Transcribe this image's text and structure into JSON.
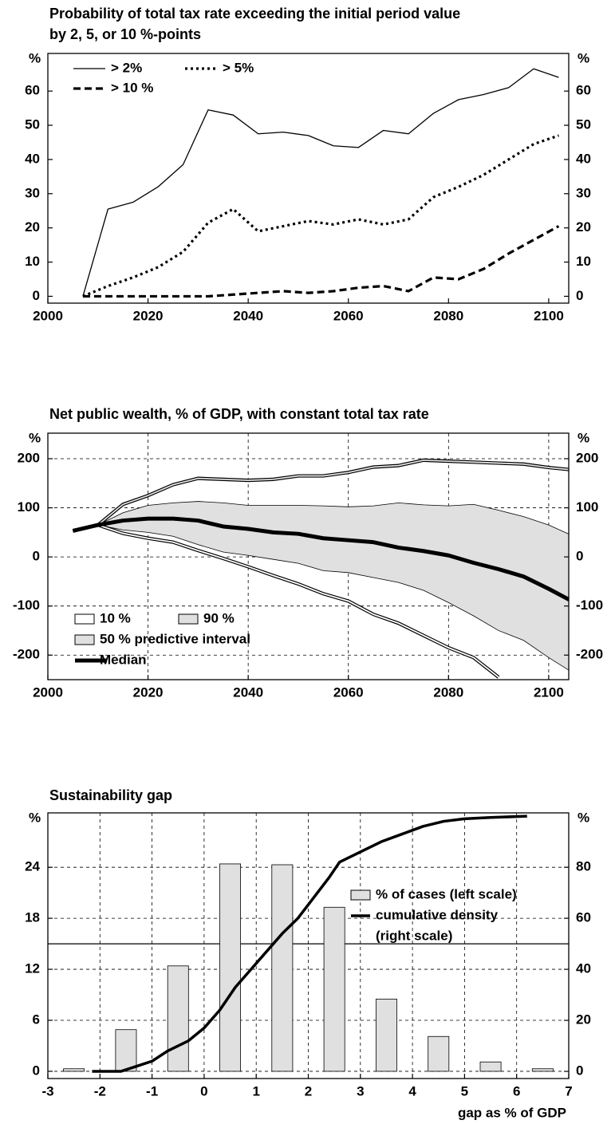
{
  "chart_data": [
    {
      "type": "line",
      "title": [
        "Probability of total tax rate exceeding the initial period value",
        "by 2, 5, or 10 %-points"
      ],
      "y_unit": "%",
      "y2_unit": "%",
      "xlim": [
        2000,
        2104
      ],
      "xticks": [
        2000,
        2020,
        2040,
        2060,
        2080,
        2100
      ],
      "ylim": [
        -2,
        71
      ],
      "yticks": [
        0,
        10,
        20,
        30,
        40,
        50,
        60
      ],
      "y2lim": [
        -2,
        71
      ],
      "y2ticks": [
        0,
        10,
        20,
        30,
        40,
        50,
        60
      ],
      "grid": false,
      "legend": "top-left",
      "x": [
        2007,
        2012,
        2017,
        2022,
        2027,
        2032,
        2037,
        2042,
        2047,
        2052,
        2057,
        2062,
        2067,
        2072,
        2077,
        2082,
        2087,
        2092,
        2097,
        2102
      ],
      "series": [
        {
          "name": "> 2%",
          "color": "#000000",
          "style": "solid",
          "values": [
            0,
            25.5,
            27.5,
            32,
            38.5,
            54.5,
            53,
            47.5,
            48,
            47,
            44,
            43.5,
            48.5,
            47.5,
            53.5,
            57.5,
            59,
            61,
            66.5,
            64
          ]
        },
        {
          "name": "> 5%",
          "color": "#000000",
          "style": "dotted",
          "values": [
            0,
            3,
            5.5,
            8.5,
            13,
            21.5,
            25.5,
            19,
            20.5,
            22,
            21,
            22.5,
            21,
            22.5,
            29,
            32,
            35.5,
            40,
            44.5,
            47
          ]
        },
        {
          "name": "> 10 %",
          "color": "#000000",
          "style": "dashed",
          "values": [
            0,
            0,
            0,
            0,
            0,
            0,
            0.5,
            1,
            1.5,
            1,
            1.5,
            2.5,
            3,
            1.5,
            5.5,
            5,
            8,
            12.5,
            16.5,
            20.5
          ]
        }
      ]
    },
    {
      "type": "line",
      "title": [
        "Net public wealth, % of GDP, with constant total tax rate"
      ],
      "y_unit": "%",
      "y2_unit": "%",
      "xlim": [
        2000,
        2104
      ],
      "xticks": [
        2000,
        2020,
        2040,
        2060,
        2080,
        2100
      ],
      "ylim": [
        -250,
        252
      ],
      "yticks": [
        -200,
        -100,
        0,
        100,
        200
      ],
      "y2lim": [
        -250,
        252
      ],
      "y2ticks": [
        -200,
        -100,
        0,
        100,
        200
      ],
      "grid": true,
      "legend": "bottom-left",
      "x": [
        2005,
        2010,
        2015,
        2020,
        2025,
        2030,
        2035,
        2040,
        2045,
        2050,
        2055,
        2060,
        2065,
        2070,
        2075,
        2080,
        2085,
        2090,
        2095,
        2100,
        2105
      ],
      "series": [
        {
          "name": "10 %",
          "color": "#ffffff",
          "style": "double",
          "values": [
            53,
            65,
            48,
            38,
            30,
            13,
            -3,
            -20,
            -38,
            -55,
            -75,
            -90,
            -117,
            -135,
            -160,
            -185,
            -205,
            -245,
            null,
            null,
            null
          ]
        },
        {
          "name": "90 %",
          "color": "#e0e0e0",
          "style": "double",
          "values": [
            53,
            65,
            107,
            125,
            147,
            160,
            158,
            156,
            158,
            165,
            165,
            172,
            183,
            186,
            197,
            195,
            193,
            191,
            189,
            182,
            177
          ]
        },
        {
          "name": "50 % predictive interval",
          "color": "#e0e0e0",
          "style": "band",
          "upper": [
            53,
            65,
            90,
            105,
            110,
            113,
            110,
            105,
            105,
            105,
            104,
            102,
            104,
            110,
            106,
            104,
            107,
            95,
            82,
            65,
            42
          ],
          "lower": [
            53,
            65,
            55,
            50,
            42,
            25,
            10,
            3,
            -5,
            -13,
            -28,
            -32,
            -42,
            -52,
            -68,
            -93,
            -120,
            -150,
            -170,
            -205,
            -237
          ]
        },
        {
          "name": "Median",
          "color": "#000000",
          "style": "thick",
          "values": [
            53,
            65,
            74,
            78,
            78,
            74,
            62,
            57,
            50,
            47,
            38,
            34,
            30,
            19,
            12,
            3,
            -12,
            -25,
            -40,
            -65,
            -92
          ]
        }
      ]
    },
    {
      "type": "histogram",
      "title": [
        "Sustainability gap"
      ],
      "y_unit": "%",
      "y2_unit": "%",
      "xlabel": "gap as % of GDP",
      "xlim": [
        -3,
        7
      ],
      "xticks": [
        -3,
        -2,
        -1,
        0,
        1,
        2,
        3,
        4,
        5,
        6,
        7
      ],
      "ylim": [
        -0.85,
        30.4
      ],
      "yticks": [
        0,
        6,
        12,
        18,
        24
      ],
      "y2lim": [
        -2.8,
        101.3
      ],
      "y2ticks": [
        0,
        20,
        40,
        60,
        80
      ],
      "grid": true,
      "legend": "top-right",
      "y2_refline": 50,
      "bins": [
        -3,
        -2,
        -1,
        0,
        1,
        2,
        3,
        4,
        5,
        6,
        7
      ],
      "series": [
        {
          "name": "% of cases (left scale)",
          "color": "#e0e0e0",
          "values": [
            0.3,
            4.9,
            12.4,
            24.4,
            24.3,
            19.3,
            8.5,
            4.1,
            1.1,
            0.3
          ]
        },
        {
          "name": "cumulative density",
          "note": "(right scale)",
          "color": "#000000",
          "axis": "y2",
          "x": [
            -2.15,
            -1.6,
            -1.3,
            -1,
            -0.7,
            -0.3,
            0,
            0.3,
            0.6,
            0.9,
            1.2,
            1.5,
            1.8,
            2.1,
            2.4,
            2.6,
            3,
            3.4,
            3.8,
            4.2,
            4.6,
            5,
            5.5,
            6.2
          ],
          "values": [
            0,
            0,
            2,
            4,
            8,
            12,
            17,
            24,
            33,
            40,
            47,
            54,
            60,
            68,
            76,
            82,
            86,
            90,
            93,
            96,
            98,
            99,
            99.5,
            100
          ]
        }
      ]
    }
  ]
}
